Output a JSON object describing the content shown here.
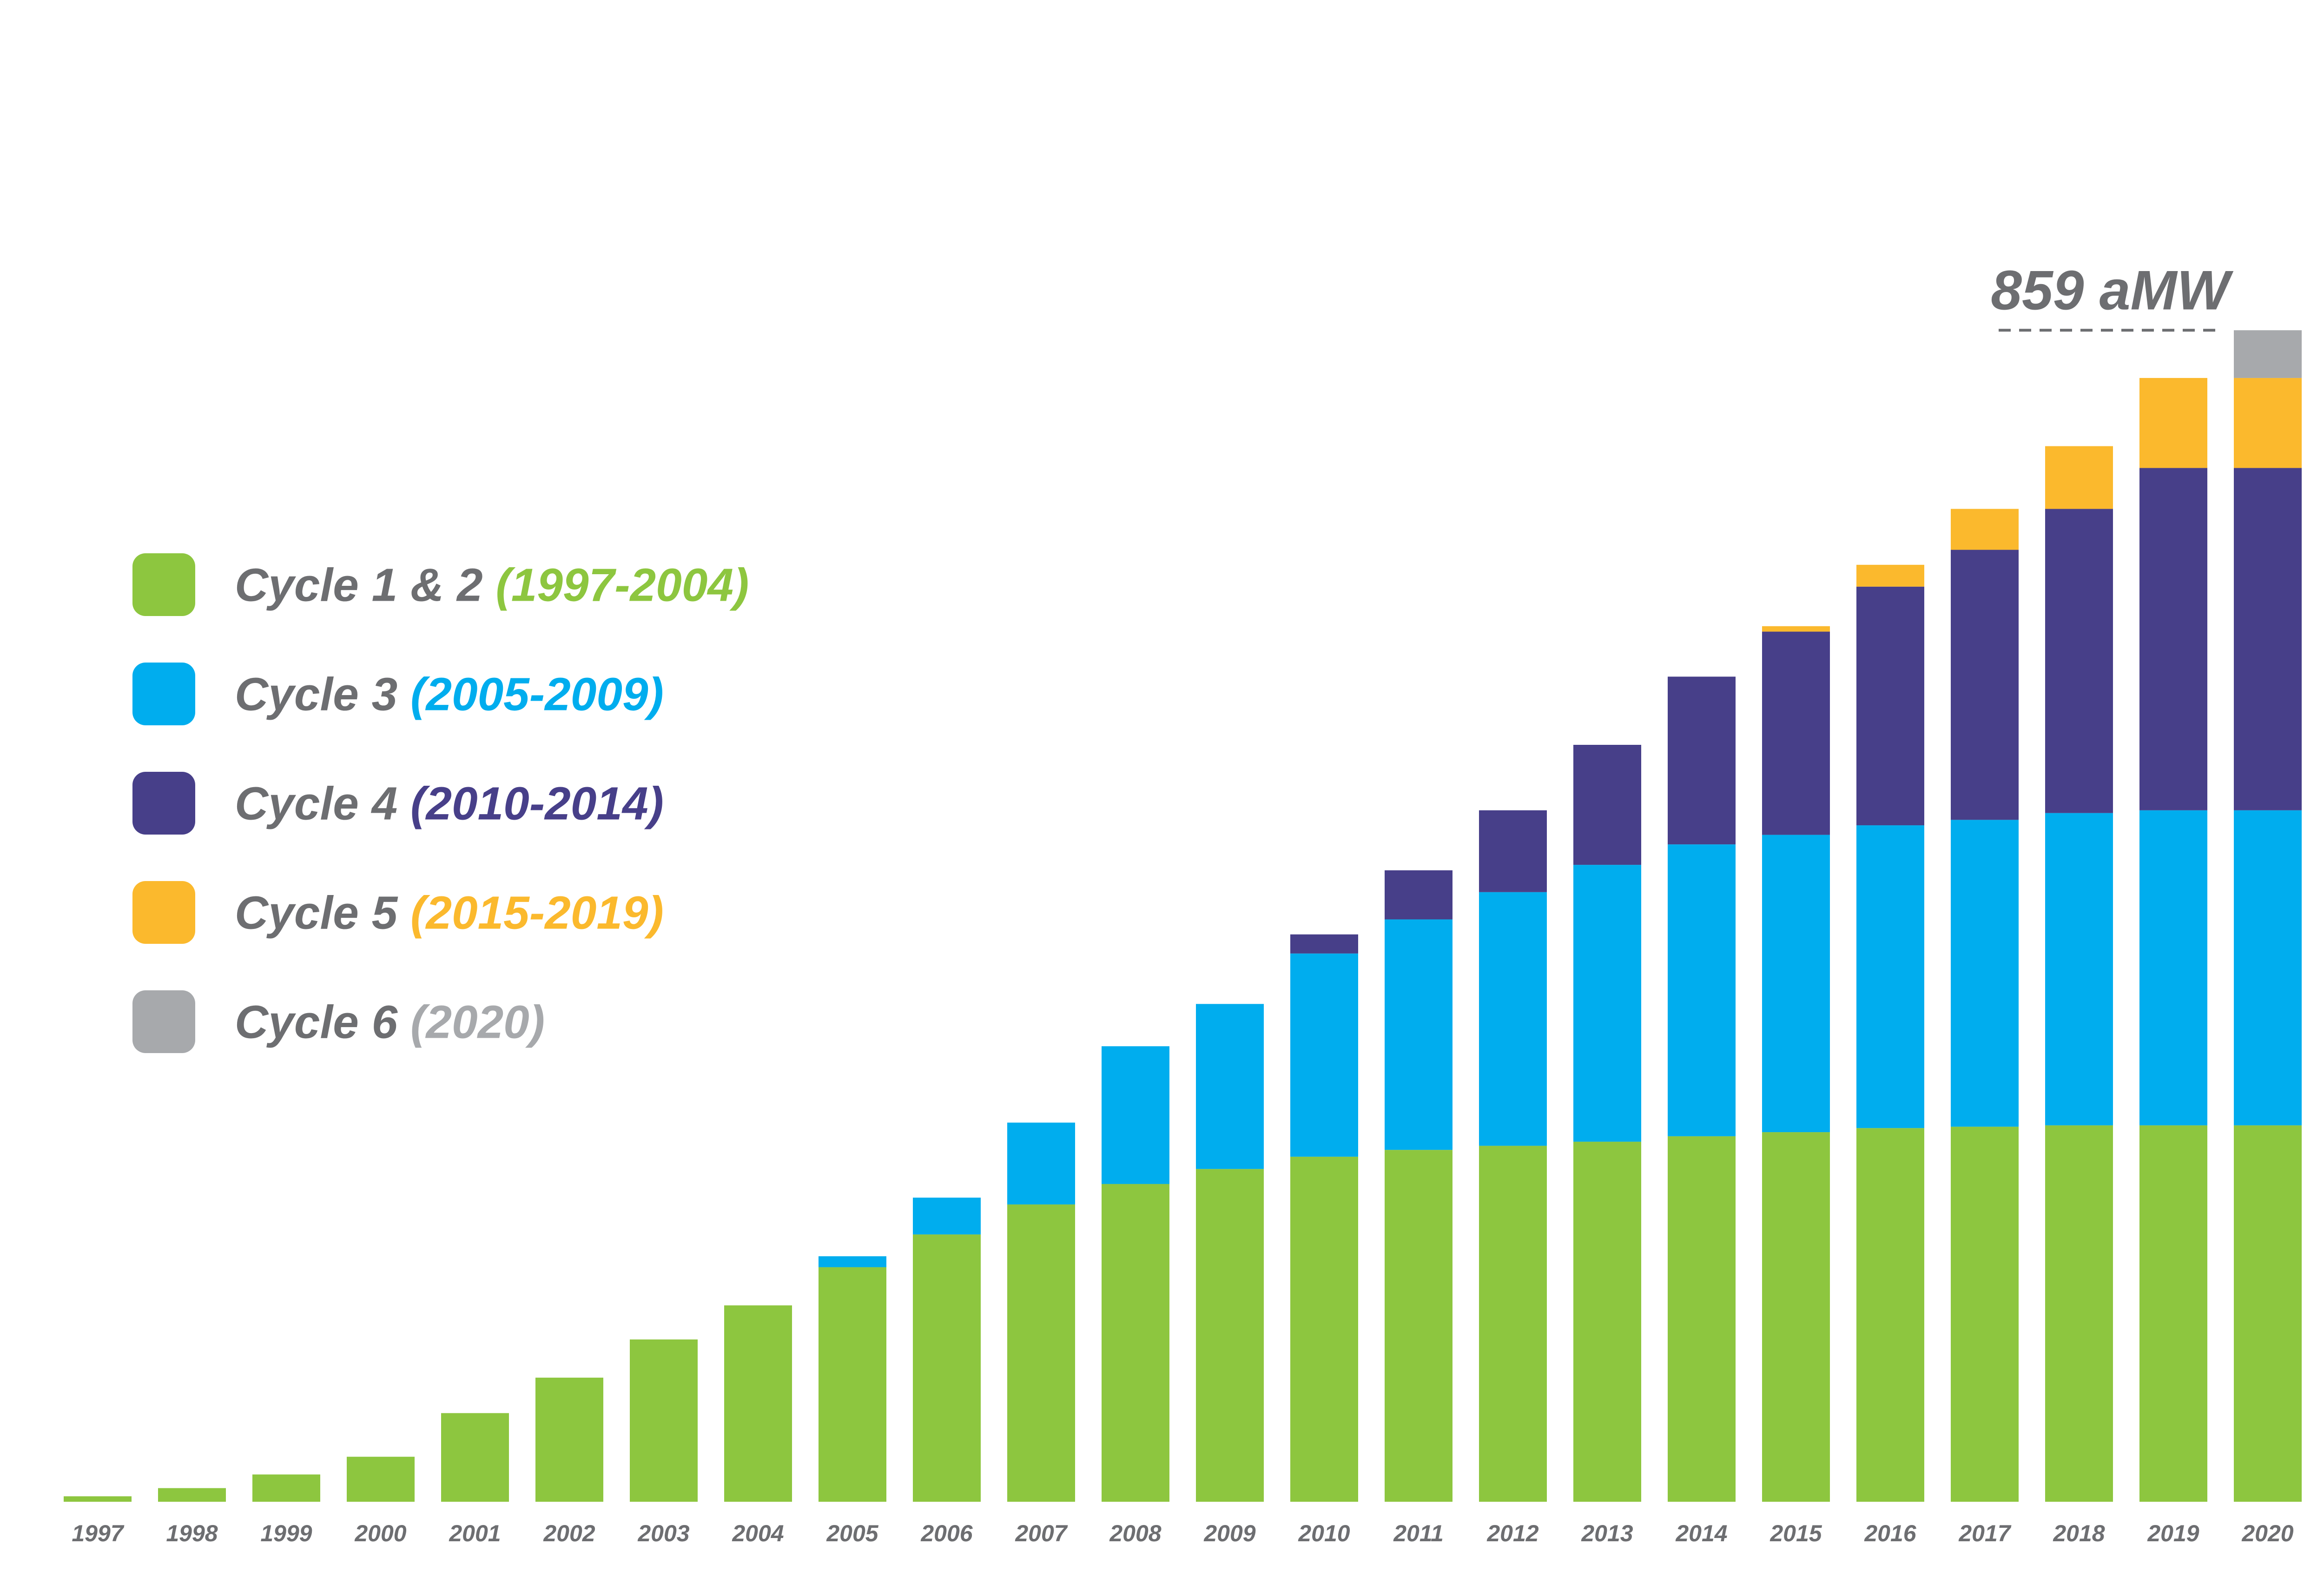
{
  "chart_data": {
    "type": "bar",
    "stacked": true,
    "categories": [
      "1997",
      "1998",
      "1999",
      "2000",
      "2001",
      "2002",
      "2003",
      "2004",
      "2005",
      "2006",
      "2007",
      "2008",
      "2009",
      "2010",
      "2011",
      "2012",
      "2013",
      "2014",
      "2015",
      "2016",
      "2017",
      "2018",
      "2019",
      "2020"
    ],
    "series": [
      {
        "name": "Cycle 1 & 2",
        "period": "(1997-2004)",
        "color": "#8dc63f",
        "values": [
          4,
          10,
          20,
          33,
          65,
          91,
          119,
          144,
          172,
          196,
          218,
          233,
          244,
          253,
          258,
          261,
          264,
          268,
          271,
          274,
          275,
          276,
          276,
          276
        ]
      },
      {
        "name": "Cycle 3",
        "period": "(2005-2009)",
        "color": "#00adee",
        "values": [
          0,
          0,
          0,
          0,
          0,
          0,
          0,
          0,
          8,
          27,
          60,
          101,
          121,
          149,
          169,
          186,
          203,
          214,
          218,
          222,
          225,
          229,
          231,
          231
        ]
      },
      {
        "name": "Cycle 4",
        "period": "(2010-2014)",
        "color": "#473f89",
        "values": [
          0,
          0,
          0,
          0,
          0,
          0,
          0,
          0,
          0,
          0,
          0,
          0,
          0,
          14,
          36,
          60,
          88,
          123,
          149,
          175,
          198,
          223,
          251,
          251
        ]
      },
      {
        "name": "Cycle 5",
        "period": "(2015-2019)",
        "color": "#fbb92d",
        "values": [
          0,
          0,
          0,
          0,
          0,
          0,
          0,
          0,
          0,
          0,
          0,
          0,
          0,
          0,
          0,
          0,
          0,
          0,
          4,
          16,
          30,
          46,
          66,
          66
        ]
      },
      {
        "name": "Cycle 6",
        "period": "(2020)",
        "color": "#a7a9ac",
        "values": [
          0,
          0,
          0,
          0,
          0,
          0,
          0,
          0,
          0,
          0,
          0,
          0,
          0,
          0,
          0,
          0,
          0,
          0,
          0,
          0,
          0,
          0,
          0,
          35
        ]
      }
    ],
    "ylim": [
      0,
      900
    ],
    "legend_position": "left",
    "title": "",
    "xlabel": "",
    "ylabel": "",
    "annotation": {
      "text": "859 aMW",
      "category": "2020",
      "value": 859
    },
    "label_color": "#6d6e71"
  }
}
